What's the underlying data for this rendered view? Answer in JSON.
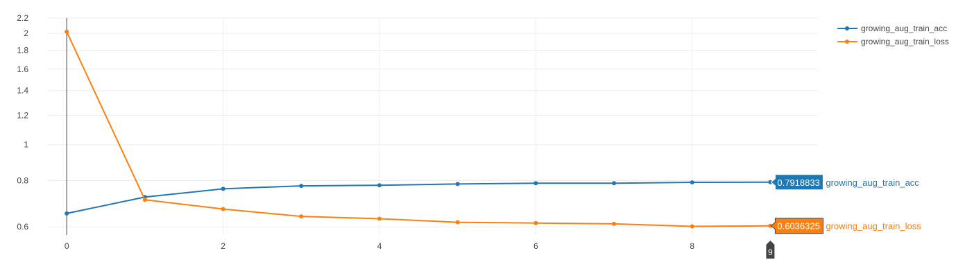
{
  "chart_data": {
    "type": "line",
    "x": [
      0,
      1,
      2,
      3,
      4,
      5,
      6,
      7,
      8,
      9
    ],
    "series": [
      {
        "name": "growing_aug_train_acc",
        "color": "#1f77b4",
        "values": [
          0.652,
          0.722,
          0.76,
          0.774,
          0.777,
          0.783,
          0.787,
          0.787,
          0.791,
          0.7918833
        ]
      },
      {
        "name": "growing_aug_train_loss",
        "color": "#ff7f0e",
        "values": [
          2.02,
          0.71,
          0.67,
          0.64,
          0.631,
          0.617,
          0.614,
          0.611,
          0.6015,
          0.6036325
        ]
      }
    ],
    "xlim": [
      -0.25,
      9.6
    ],
    "ylim": [
      0.57,
      2.2
    ],
    "y_scale": "log",
    "x_ticks": [
      "0",
      "2",
      "4",
      "6",
      "8"
    ],
    "y_ticks": [
      "0.6",
      "0.8",
      "1",
      "1.2",
      "1.4",
      "1.6",
      "1.8",
      "2",
      "2.2"
    ],
    "grid": true,
    "legend_position": "top-right",
    "hover": {
      "x_label": "9",
      "labels": [
        "0.7918833",
        "0.6036325"
      ]
    }
  }
}
